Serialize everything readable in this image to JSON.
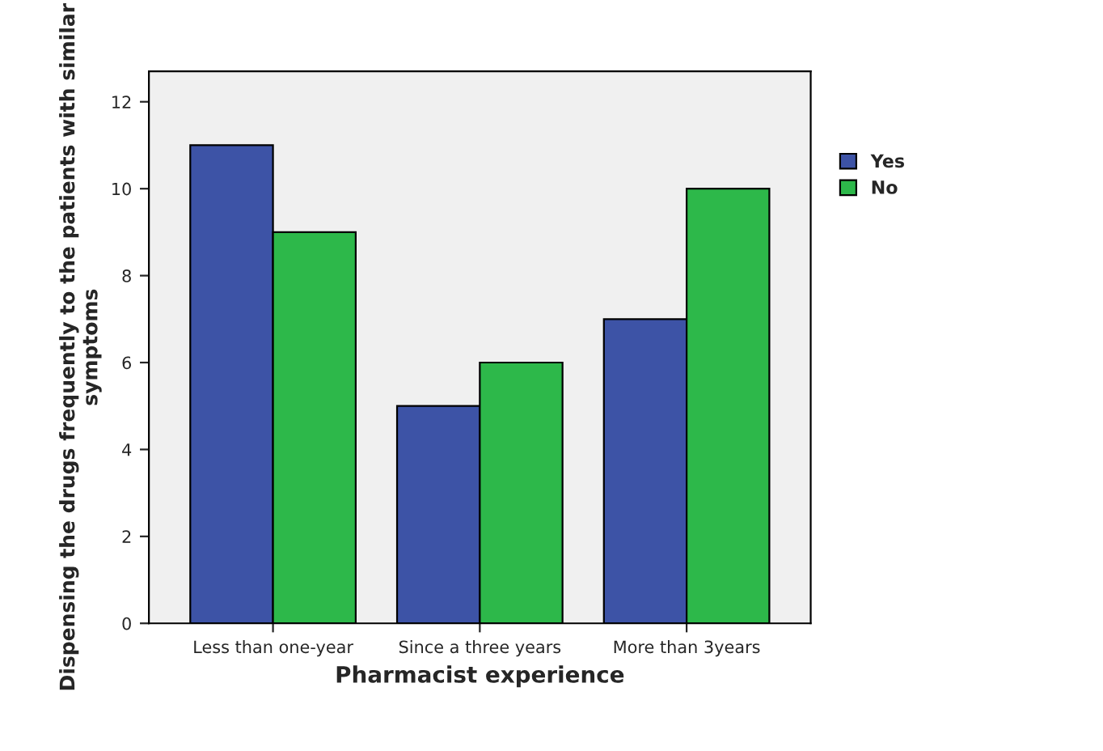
{
  "chart_data": {
    "type": "bar",
    "xlabel": "Pharmacist experience",
    "ylabel": "Dispensing the drugs frequently to the patients with similar symptoms",
    "categories": [
      "Less than one-year",
      "Since a three years",
      "More than 3years"
    ],
    "series": [
      {
        "name": "Yes",
        "color": "#3d53a6",
        "values": [
          11,
          5,
          7
        ]
      },
      {
        "name": "No",
        "color": "#2db84a",
        "values": [
          9,
          6,
          10
        ]
      }
    ],
    "ylim": [
      0,
      12.7
    ],
    "yticks": [
      0,
      2,
      4,
      6,
      8,
      10,
      12
    ],
    "grid": false,
    "legend": "top right"
  }
}
